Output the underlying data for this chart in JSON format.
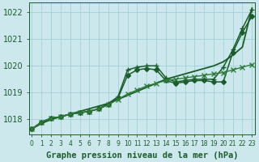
{
  "title": "Graphe pression niveau de la mer (hPa)",
  "xlabel_ticks": [
    0,
    1,
    2,
    3,
    4,
    5,
    6,
    7,
    8,
    9,
    10,
    11,
    12,
    13,
    14,
    15,
    16,
    17,
    18,
    19,
    20,
    21,
    22,
    23
  ],
  "ylim": [
    1017.45,
    1022.35
  ],
  "xlim": [
    -0.3,
    23.3
  ],
  "yticks": [
    1018,
    1019,
    1020,
    1021,
    1022
  ],
  "background_color": "#cce8ec",
  "grid_color": "#99ccd4",
  "lines": [
    {
      "x": [
        0,
        1,
        2,
        3,
        4,
        5,
        6,
        7,
        8,
        9,
        10,
        11,
        12,
        13,
        14,
        15,
        16,
        17,
        18,
        19,
        20,
        21,
        22,
        23
      ],
      "y": [
        1017.65,
        1017.85,
        1018.0,
        1018.1,
        1018.2,
        1018.3,
        1018.4,
        1018.5,
        1018.6,
        1018.75,
        1018.9,
        1019.05,
        1019.2,
        1019.35,
        1019.5,
        1019.6,
        1019.7,
        1019.8,
        1019.9,
        1020.0,
        1020.15,
        1020.4,
        1020.7,
        1022.15
      ],
      "marker": null,
      "markersize": 0,
      "linewidth": 1.3,
      "color": "#1a5c2a"
    },
    {
      "x": [
        0,
        1,
        2,
        3,
        4,
        5,
        6,
        7,
        8,
        9,
        10,
        11,
        12,
        13,
        14,
        15,
        16,
        17,
        18,
        19,
        20,
        21,
        22,
        23
      ],
      "y": [
        1017.65,
        1017.9,
        1018.05,
        1018.1,
        1018.2,
        1018.25,
        1018.3,
        1018.4,
        1018.6,
        1018.85,
        1019.85,
        1019.95,
        1020.0,
        1020.0,
        1019.55,
        1019.4,
        1019.45,
        1019.5,
        1019.5,
        1019.5,
        1019.95,
        1020.6,
        1021.4,
        1022.1
      ],
      "marker": "+",
      "markersize": 5,
      "linewidth": 1.1,
      "color": "#1a5c2a"
    },
    {
      "x": [
        0,
        1,
        2,
        3,
        4,
        5,
        6,
        7,
        8,
        9,
        10,
        11,
        12,
        13,
        14,
        15,
        16,
        17,
        18,
        19,
        20,
        21,
        22,
        23
      ],
      "y": [
        1017.65,
        1017.9,
        1018.05,
        1018.1,
        1018.2,
        1018.25,
        1018.3,
        1018.4,
        1018.55,
        1018.8,
        1019.65,
        1019.85,
        1019.9,
        1019.85,
        1019.45,
        1019.35,
        1019.4,
        1019.45,
        1019.45,
        1019.4,
        1019.4,
        1020.5,
        1021.25,
        1021.85
      ],
      "marker": "D",
      "markersize": 3,
      "linewidth": 1.1,
      "color": "#1a5c2a"
    },
    {
      "x": [
        0,
        1,
        2,
        3,
        4,
        5,
        6,
        7,
        8,
        9,
        10,
        11,
        12,
        13,
        14,
        15,
        16,
        17,
        18,
        19,
        20,
        21,
        22,
        23
      ],
      "y": [
        1017.65,
        1017.9,
        1018.05,
        1018.1,
        1018.2,
        1018.25,
        1018.3,
        1018.4,
        1018.55,
        1018.75,
        1018.95,
        1019.1,
        1019.25,
        1019.35,
        1019.45,
        1019.5,
        1019.55,
        1019.6,
        1019.65,
        1019.7,
        1019.75,
        1019.85,
        1019.95,
        1020.05
      ],
      "marker": "x",
      "markersize": 4,
      "linewidth": 1.0,
      "color": "#2d7a3a"
    }
  ],
  "font_color": "#1a5c2a",
  "tick_fontsize": 7,
  "label_fontsize": 7.5
}
